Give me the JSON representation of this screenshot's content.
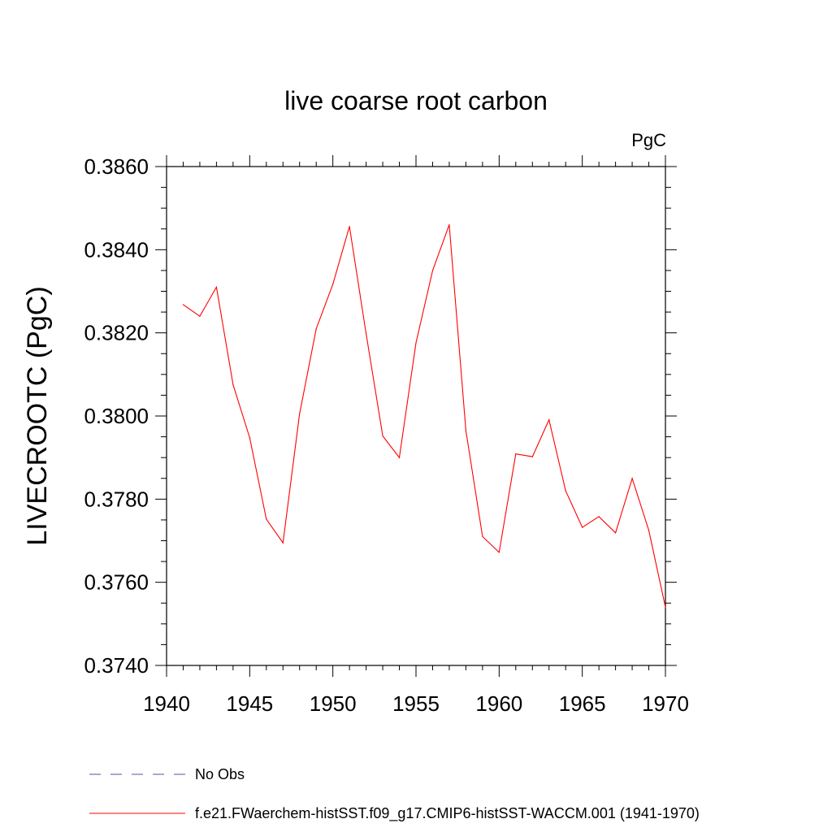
{
  "chart_data": {
    "type": "line",
    "title": "live coarse root carbon",
    "units_label": "PgC",
    "ylabel": "LIVECROOTC  (PgC)",
    "xlabel": "",
    "xlim": [
      1940,
      1970
    ],
    "ylim": [
      0.374,
      0.386
    ],
    "x_ticks": [
      "1940",
      "1945",
      "1950",
      "1955",
      "1960",
      "1965",
      "1970"
    ],
    "y_ticks": [
      "0.3740",
      "0.3760",
      "0.3780",
      "0.3800",
      "0.3820",
      "0.3840",
      "0.3860"
    ],
    "grid": false,
    "legend_position": "bottom-left",
    "series": [
      {
        "name": "f.e21.FWaerchem-histSST.f09_g17.CMIP6-histSST-WACCM.001 (1941-1970)",
        "color": "#ff0000",
        "line_style": "solid",
        "x": [
          1941,
          1942,
          1943,
          1944,
          1945,
          1946,
          1947,
          1948,
          1949,
          1950,
          1951,
          1952,
          1953,
          1954,
          1955,
          1956,
          1957,
          1958,
          1959,
          1960,
          1961,
          1962,
          1963,
          1964,
          1965,
          1966,
          1967,
          1968,
          1969,
          1970
        ],
        "values": [
          0.38268,
          0.3824,
          0.3831,
          0.38075,
          0.37948,
          0.37752,
          0.37695,
          0.38005,
          0.3821,
          0.38317,
          0.38456,
          0.38198,
          0.37952,
          0.379,
          0.38176,
          0.3835,
          0.3846,
          0.37965,
          0.3771,
          0.37672,
          0.37909,
          0.37902,
          0.37991,
          0.3782,
          0.37732,
          0.37758,
          0.37719,
          0.3785,
          0.37725,
          0.3754
        ]
      },
      {
        "name": "No Obs",
        "color": "#5a4fa0",
        "line_style": "dashed",
        "x": [],
        "values": []
      }
    ]
  }
}
